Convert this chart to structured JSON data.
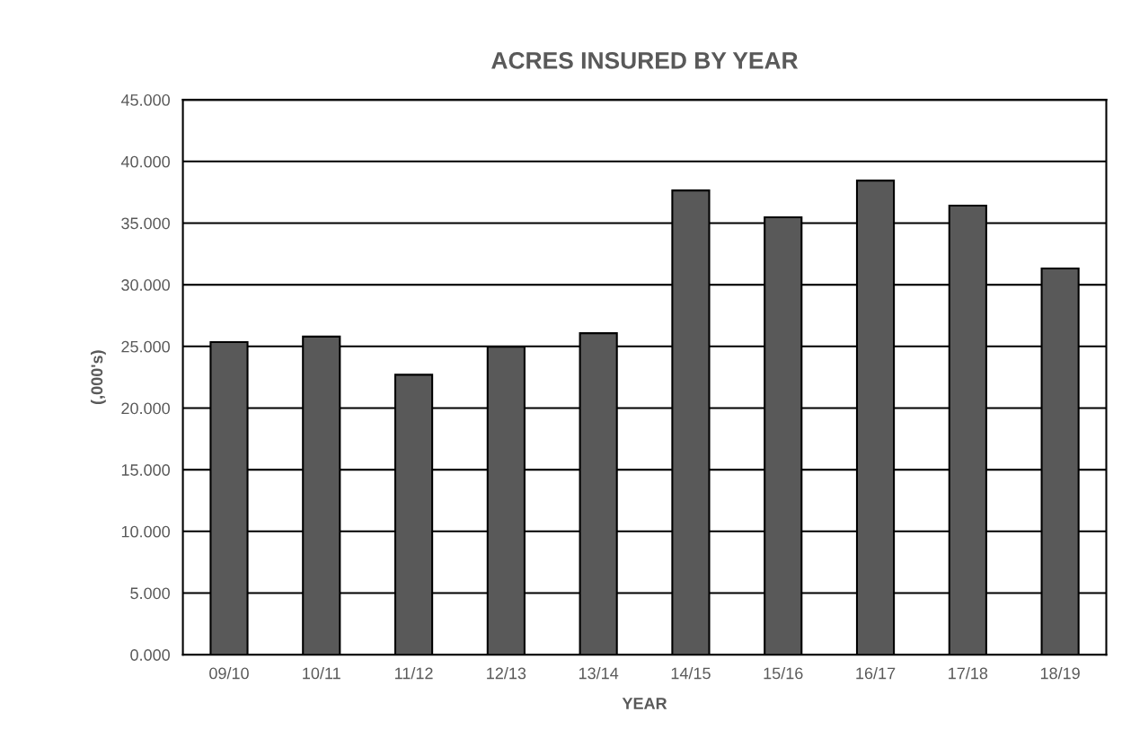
{
  "chart_data": {
    "type": "bar",
    "title": "ACRES INSURED BY YEAR",
    "xlabel": "YEAR",
    "ylabel": "(,000's)",
    "categories": [
      "09/10",
      "10/11",
      "11/12",
      "12/13",
      "13/14",
      "14/15",
      "15/16",
      "16/17",
      "17/18",
      "18/19"
    ],
    "values": [
      25.35,
      25.8,
      22.7,
      24.98,
      26.07,
      37.65,
      35.47,
      38.45,
      36.42,
      31.32
    ],
    "color": "#595959",
    "ylim": [
      0,
      45
    ],
    "yticks": [
      {
        "value": 0,
        "label": "0.000"
      },
      {
        "value": 5,
        "label": "5.000"
      },
      {
        "value": 10,
        "label": "10.000"
      },
      {
        "value": 15,
        "label": "15.000"
      },
      {
        "value": 20,
        "label": "20.000"
      },
      {
        "value": 25,
        "label": "25.000"
      },
      {
        "value": 30,
        "label": "30.000"
      },
      {
        "value": 35,
        "label": "35.000"
      },
      {
        "value": 40,
        "label": "40.000"
      },
      {
        "value": 45,
        "label": "45.000"
      }
    ],
    "grid": "y",
    "legend": false
  }
}
